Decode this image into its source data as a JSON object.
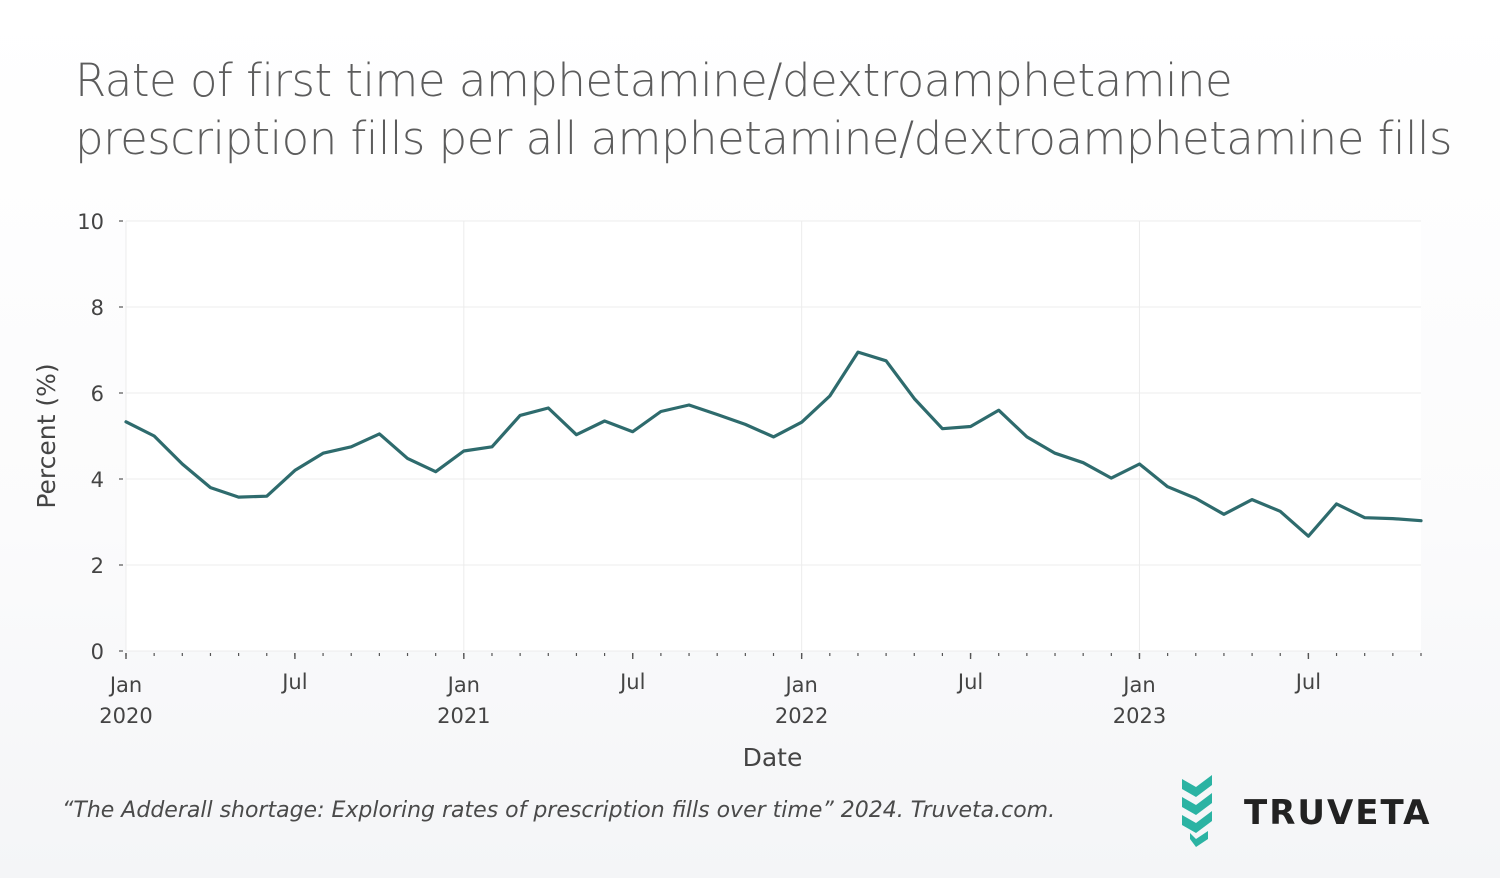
{
  "title_lines": [
    "Rate of first time amphetamine/dextroamphetamine",
    "prescription fills per all amphetamine/dextroamphetamine fills"
  ],
  "caption": "“The Adderall shortage: Exploring rates of prescription fills over time” 2024. Truveta.com.",
  "logo": {
    "text": "TRUVETA",
    "icon": "truveta-chevrons-icon",
    "color": "#2bb3a3"
  },
  "chart_data": {
    "type": "line",
    "title": "",
    "xlabel": "Date",
    "ylabel": "Percent (%)",
    "ylim": [
      0,
      10
    ],
    "yticks": [
      0,
      2,
      4,
      6,
      8,
      10
    ],
    "xlim": [
      "2020-01",
      "2023-11"
    ],
    "xticks": [
      {
        "value": "2020-01",
        "label": "Jan",
        "sublabel": "2020"
      },
      {
        "value": "2020-07",
        "label": "Jul",
        "sublabel": ""
      },
      {
        "value": "2021-01",
        "label": "Jan",
        "sublabel": "2021"
      },
      {
        "value": "2021-07",
        "label": "Jul",
        "sublabel": ""
      },
      {
        "value": "2022-01",
        "label": "Jan",
        "sublabel": "2022"
      },
      {
        "value": "2022-07",
        "label": "Jul",
        "sublabel": ""
      },
      {
        "value": "2023-01",
        "label": "Jan",
        "sublabel": "2023"
      },
      {
        "value": "2023-07",
        "label": "Jul",
        "sublabel": ""
      }
    ],
    "grid": true,
    "line_color": "#2e6b6d",
    "series": [
      {
        "x": [
          "2020-01",
          "2020-02",
          "2020-03",
          "2020-04",
          "2020-05",
          "2020-06",
          "2020-07",
          "2020-08",
          "2020-09",
          "2020-10",
          "2020-11",
          "2020-12",
          "2021-01",
          "2021-02",
          "2021-03",
          "2021-04",
          "2021-05",
          "2021-06",
          "2021-07",
          "2021-08",
          "2021-09",
          "2021-10",
          "2021-11",
          "2021-12",
          "2022-01",
          "2022-02",
          "2022-03",
          "2022-04",
          "2022-05",
          "2022-06",
          "2022-07",
          "2022-08",
          "2022-09",
          "2022-10",
          "2022-11",
          "2022-12",
          "2023-01",
          "2023-02",
          "2023-03",
          "2023-04",
          "2023-05",
          "2023-06",
          "2023-07",
          "2023-08",
          "2023-09",
          "2023-10",
          "2023-11"
        ],
        "values": [
          5.33,
          5.0,
          4.35,
          3.8,
          3.58,
          3.6,
          4.2,
          4.6,
          4.75,
          5.05,
          4.48,
          4.17,
          4.65,
          4.75,
          5.48,
          5.65,
          5.03,
          5.35,
          5.1,
          5.57,
          5.72,
          5.5,
          5.27,
          4.98,
          5.32,
          5.93,
          6.95,
          6.75,
          5.87,
          5.17,
          5.22,
          5.6,
          4.98,
          4.6,
          4.38,
          4.02,
          4.35,
          3.82,
          3.55,
          3.18,
          3.52,
          3.25,
          2.67,
          3.42,
          3.1,
          3.08,
          3.03
        ]
      }
    ]
  }
}
